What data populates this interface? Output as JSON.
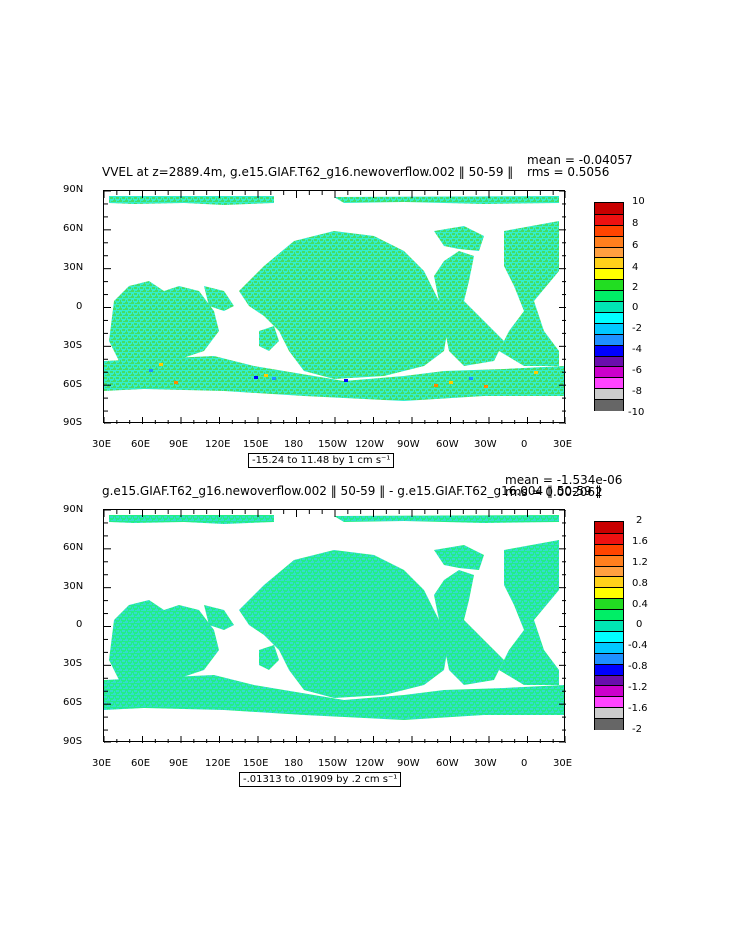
{
  "panels": [
    {
      "title": "VVEL at z=2889.4m, g.e15.GIAF.T62_g16.newoverflow.002 ‖ 50-59 ‖",
      "stat1": "mean = -0.04057",
      "stat2": "rms = 0.5056",
      "range_label": "-15.24 to 11.48 by 1 cm s⁻¹",
      "lat_labels": [
        "90N",
        "60N",
        "30N",
        "0",
        "30S",
        "60S",
        "90S"
      ],
      "lon_labels": [
        "30E",
        "60E",
        "90E",
        "120E",
        "150E",
        "180",
        "150W",
        "120W",
        "90W",
        "60W",
        "30W",
        "0",
        "30E"
      ],
      "colorbar_labels": [
        "10",
        "8",
        "6",
        "4",
        "2",
        "0",
        "-2",
        "-4",
        "-6",
        "-8",
        "-10"
      ],
      "colorbar_colors": [
        "#c80000",
        "#ee1111",
        "#ff4400",
        "#ff7f1e",
        "#ffa040",
        "#ffd11a",
        "#ffff00",
        "#22dd22",
        "#00ee66",
        "#00e6b4",
        "#00ffff",
        "#00c8ff",
        "#1e90ff",
        "#0000ff",
        "#6a0dad",
        "#cc00cc",
        "#ff44ff",
        "#cccccc",
        "#666666"
      ]
    },
    {
      "title": "g.e15.GIAF.T62_g16.newoverflow.002 ‖ 50-59 ‖ - g.e15.GIAF.T62_g16.004 ‖ 50-59 ‖",
      "stat1": "mean = -1.534e-06",
      "stat2": "rms = 0.002062",
      "range_label": "-.01313 to .01909 by .2 cm s⁻¹",
      "lat_labels": [
        "90N",
        "60N",
        "30N",
        "0",
        "30S",
        "60S",
        "90S"
      ],
      "lon_labels": [
        "30E",
        "60E",
        "90E",
        "120E",
        "150E",
        "180",
        "150W",
        "120W",
        "90W",
        "60W",
        "30W",
        "0",
        "30E"
      ],
      "colorbar_labels": [
        "2",
        "1.6",
        "1.2",
        "0.8",
        "0.4",
        "0",
        "-0.4",
        "-0.8",
        "-1.2",
        "-1.6",
        "-2"
      ],
      "colorbar_colors": [
        "#c80000",
        "#ee1111",
        "#ff4400",
        "#ff7f1e",
        "#ffa040",
        "#ffd11a",
        "#ffff00",
        "#22dd22",
        "#00ee66",
        "#00e6b4",
        "#00ffff",
        "#00c8ff",
        "#1e90ff",
        "#0000ff",
        "#6a0dad",
        "#cc00cc",
        "#ff44ff",
        "#cccccc",
        "#666666"
      ]
    }
  ],
  "colors": {
    "ocean_panel1": "#33eecc",
    "ocean_panel1_alt": "#44dd66",
    "ocean_panel2": "#22ee88",
    "ocean_panel2_alt": "#33ddcc"
  }
}
